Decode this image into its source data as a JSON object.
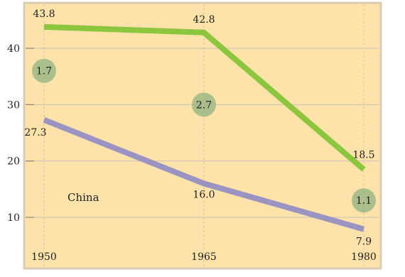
{
  "colors": {
    "background": "#fde3aa",
    "border": "#d9cdb8",
    "grid": "#c9c2b4",
    "series_green": "#8cc63f",
    "series_purple": "#9b94c2",
    "bubble": "#9cb887"
  },
  "chart_data": {
    "type": "line",
    "x": [
      1950,
      1965,
      1980
    ],
    "tick_labels_x": [
      "1950",
      "1965",
      "1980"
    ],
    "tick_labels_y": [
      "10",
      "20",
      "30",
      "40"
    ],
    "yticks": [
      10,
      20,
      30,
      40
    ],
    "xlim": [
      1950,
      1980
    ],
    "ylim": [
      0,
      45
    ],
    "grid": true,
    "series": [
      {
        "values": [
          43.8,
          42.8,
          18.5
        ],
        "labels": [
          "43.8",
          "42.8",
          "18.5"
        ],
        "color": "#8cc63f"
      },
      {
        "name": "China",
        "values": [
          27.3,
          16.0,
          7.9
        ],
        "labels": [
          "27.3",
          "16.0",
          "7.9"
        ],
        "color": "#9b94c2"
      }
    ],
    "bubbles": [
      {
        "x": 1950,
        "y": 36,
        "label": "1.7"
      },
      {
        "x": 1965,
        "y": 30,
        "label": "2.7"
      },
      {
        "x": 1980,
        "y": 13,
        "label": "1.1"
      }
    ],
    "annotations": [
      {
        "x": 1955,
        "y": 13.5,
        "text": "China"
      }
    ]
  }
}
